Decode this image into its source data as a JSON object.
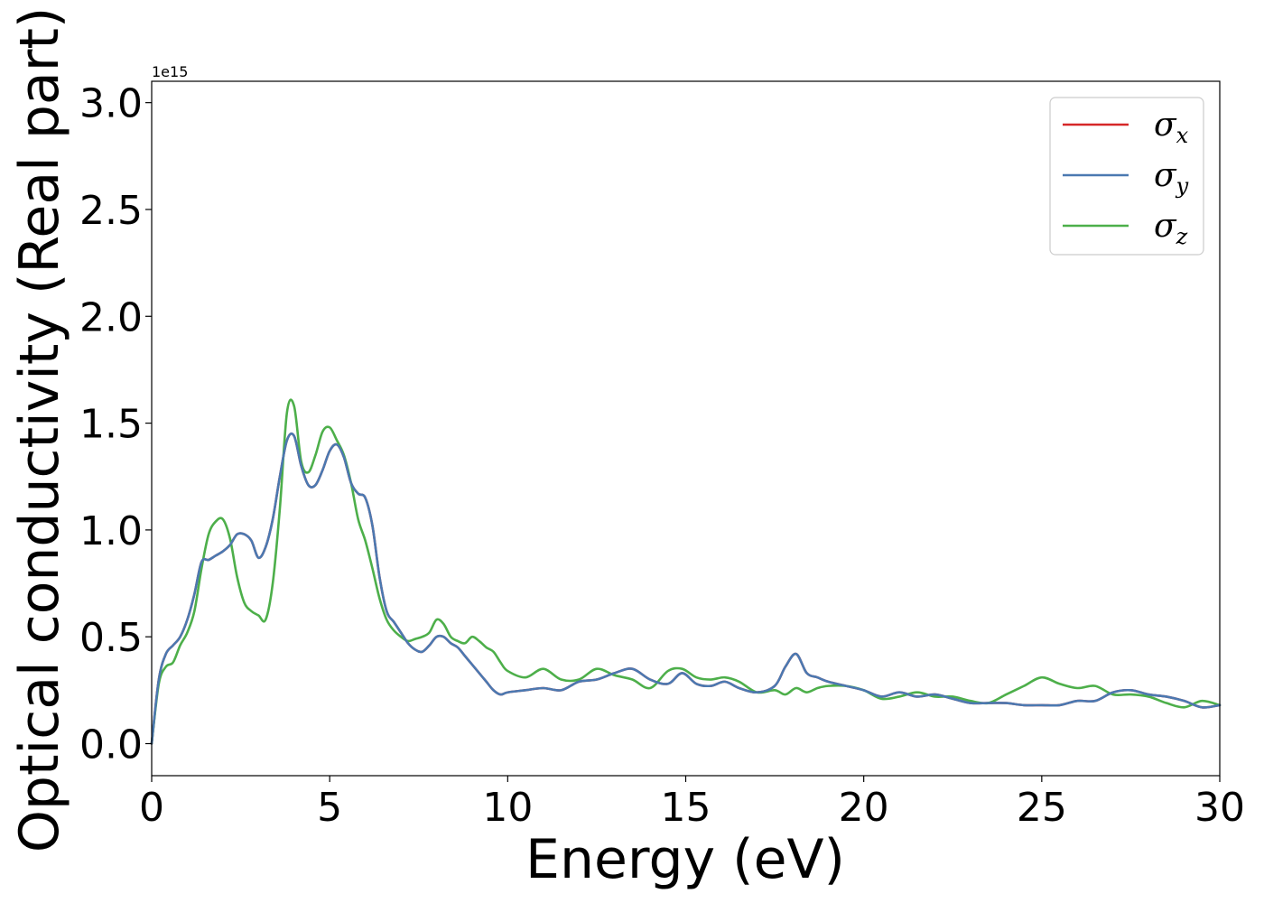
{
  "chart_data": {
    "type": "line",
    "xlabel": "Energy (eV)",
    "ylabel": "Optical conductivity (Real part)",
    "y_offset_label": "1e15",
    "xlim": [
      0,
      30
    ],
    "ylim": [
      -0.15,
      3.1
    ],
    "x_ticks": [
      0,
      5,
      10,
      15,
      20,
      25,
      30
    ],
    "x_tick_labels": [
      "0",
      "5",
      "10",
      "15",
      "20",
      "25",
      "30"
    ],
    "y_ticks": [
      0.0,
      0.5,
      1.0,
      1.5,
      2.0,
      2.5,
      3.0
    ],
    "y_tick_labels": [
      "0.0",
      "0.5",
      "1.0",
      "1.5",
      "2.0",
      "2.5",
      "3.0"
    ],
    "grid": false,
    "legend_position": "top-right",
    "series": [
      {
        "name": "σx",
        "symbol": "σ",
        "subscript": "x",
        "color": "#d62728",
        "x": [
          0,
          0.2,
          0.4,
          0.6,
          0.8,
          1.0,
          1.2,
          1.4,
          1.6,
          1.8,
          2.0,
          2.2,
          2.4,
          2.6,
          2.8,
          3.0,
          3.2,
          3.4,
          3.6,
          3.8,
          4.0,
          4.2,
          4.4,
          4.6,
          4.8,
          5.0,
          5.2,
          5.4,
          5.6,
          5.8,
          6.0,
          6.2,
          6.4,
          6.6,
          6.8,
          7.0,
          7.2,
          7.4,
          7.6,
          7.8,
          8.0,
          8.2,
          8.4,
          8.6,
          8.8,
          9.0,
          9.2,
          9.4,
          9.6,
          9.8,
          10.0,
          10.5,
          11.0,
          11.5,
          12.0,
          12.5,
          13.0,
          13.5,
          14.0,
          14.5,
          14.9,
          15.3,
          15.7,
          16.1,
          16.5,
          17.0,
          17.5,
          17.8,
          18.1,
          18.4,
          18.7,
          19.0,
          19.5,
          20.0,
          20.5,
          21.0,
          21.5,
          22.0,
          22.5,
          23.0,
          23.5,
          24.0,
          24.5,
          25.0,
          25.5,
          26.0,
          26.5,
          27.0,
          27.5,
          28.0,
          28.5,
          29.0,
          29.5,
          30.0
        ],
        "y": [
          0.0,
          0.3,
          0.42,
          0.46,
          0.5,
          0.58,
          0.7,
          0.85,
          0.86,
          0.88,
          0.9,
          0.93,
          0.98,
          0.98,
          0.95,
          0.87,
          0.92,
          1.05,
          1.25,
          1.42,
          1.44,
          1.3,
          1.21,
          1.21,
          1.28,
          1.37,
          1.4,
          1.34,
          1.22,
          1.17,
          1.15,
          1.02,
          0.78,
          0.62,
          0.57,
          0.52,
          0.47,
          0.44,
          0.43,
          0.46,
          0.5,
          0.5,
          0.47,
          0.45,
          0.41,
          0.37,
          0.33,
          0.29,
          0.25,
          0.23,
          0.24,
          0.25,
          0.26,
          0.25,
          0.29,
          0.3,
          0.33,
          0.35,
          0.3,
          0.28,
          0.33,
          0.28,
          0.27,
          0.29,
          0.26,
          0.24,
          0.27,
          0.36,
          0.42,
          0.33,
          0.31,
          0.29,
          0.27,
          0.25,
          0.22,
          0.24,
          0.22,
          0.23,
          0.21,
          0.19,
          0.19,
          0.19,
          0.18,
          0.18,
          0.18,
          0.2,
          0.2,
          0.24,
          0.25,
          0.23,
          0.22,
          0.2,
          0.17,
          0.18
        ]
      },
      {
        "name": "σy",
        "symbol": "σ",
        "subscript": "y",
        "color": "#4b79b1",
        "x": [
          0,
          0.2,
          0.4,
          0.6,
          0.8,
          1.0,
          1.2,
          1.4,
          1.6,
          1.8,
          2.0,
          2.2,
          2.4,
          2.6,
          2.8,
          3.0,
          3.2,
          3.4,
          3.6,
          3.8,
          4.0,
          4.2,
          4.4,
          4.6,
          4.8,
          5.0,
          5.2,
          5.4,
          5.6,
          5.8,
          6.0,
          6.2,
          6.4,
          6.6,
          6.8,
          7.0,
          7.2,
          7.4,
          7.6,
          7.8,
          8.0,
          8.2,
          8.4,
          8.6,
          8.8,
          9.0,
          9.2,
          9.4,
          9.6,
          9.8,
          10.0,
          10.5,
          11.0,
          11.5,
          12.0,
          12.5,
          13.0,
          13.5,
          14.0,
          14.5,
          14.9,
          15.3,
          15.7,
          16.1,
          16.5,
          17.0,
          17.5,
          17.8,
          18.1,
          18.4,
          18.7,
          19.0,
          19.5,
          20.0,
          20.5,
          21.0,
          21.5,
          22.0,
          22.5,
          23.0,
          23.5,
          24.0,
          24.5,
          25.0,
          25.5,
          26.0,
          26.5,
          27.0,
          27.5,
          28.0,
          28.5,
          29.0,
          29.5,
          30.0
        ],
        "y": [
          0.0,
          0.3,
          0.42,
          0.46,
          0.5,
          0.58,
          0.7,
          0.85,
          0.86,
          0.88,
          0.9,
          0.93,
          0.98,
          0.98,
          0.95,
          0.87,
          0.92,
          1.05,
          1.25,
          1.42,
          1.44,
          1.3,
          1.21,
          1.21,
          1.28,
          1.37,
          1.4,
          1.34,
          1.22,
          1.17,
          1.15,
          1.02,
          0.78,
          0.62,
          0.57,
          0.52,
          0.47,
          0.44,
          0.43,
          0.46,
          0.5,
          0.5,
          0.47,
          0.45,
          0.41,
          0.37,
          0.33,
          0.29,
          0.25,
          0.23,
          0.24,
          0.25,
          0.26,
          0.25,
          0.29,
          0.3,
          0.33,
          0.35,
          0.3,
          0.28,
          0.33,
          0.28,
          0.27,
          0.29,
          0.26,
          0.24,
          0.27,
          0.36,
          0.42,
          0.33,
          0.31,
          0.29,
          0.27,
          0.25,
          0.22,
          0.24,
          0.22,
          0.23,
          0.21,
          0.19,
          0.19,
          0.19,
          0.18,
          0.18,
          0.18,
          0.2,
          0.2,
          0.24,
          0.25,
          0.23,
          0.22,
          0.2,
          0.17,
          0.18
        ]
      },
      {
        "name": "σz",
        "symbol": "σ",
        "subscript": "z",
        "color": "#4daf4a",
        "x": [
          0,
          0.2,
          0.4,
          0.6,
          0.8,
          1.0,
          1.2,
          1.4,
          1.6,
          1.8,
          2.0,
          2.2,
          2.4,
          2.6,
          2.8,
          3.0,
          3.2,
          3.4,
          3.6,
          3.8,
          4.0,
          4.2,
          4.4,
          4.6,
          4.8,
          5.0,
          5.2,
          5.4,
          5.6,
          5.8,
          6.0,
          6.2,
          6.4,
          6.6,
          6.8,
          7.0,
          7.2,
          7.4,
          7.6,
          7.8,
          8.0,
          8.2,
          8.4,
          8.6,
          8.8,
          9.0,
          9.2,
          9.4,
          9.6,
          9.8,
          10.0,
          10.5,
          11.0,
          11.5,
          12.0,
          12.5,
          13.0,
          13.5,
          14.0,
          14.5,
          14.9,
          15.3,
          15.7,
          16.1,
          16.5,
          17.0,
          17.5,
          17.8,
          18.1,
          18.4,
          18.7,
          19.0,
          19.5,
          20.0,
          20.5,
          21.0,
          21.5,
          22.0,
          22.5,
          23.0,
          23.5,
          24.0,
          24.5,
          25.0,
          25.5,
          26.0,
          26.5,
          27.0,
          27.5,
          28.0,
          28.5,
          29.0,
          29.5,
          30.0
        ],
        "y": [
          0.0,
          0.28,
          0.36,
          0.38,
          0.46,
          0.52,
          0.62,
          0.82,
          0.98,
          1.04,
          1.05,
          0.96,
          0.78,
          0.66,
          0.62,
          0.6,
          0.58,
          0.75,
          1.1,
          1.55,
          1.58,
          1.32,
          1.27,
          1.35,
          1.46,
          1.48,
          1.42,
          1.35,
          1.22,
          1.05,
          0.95,
          0.82,
          0.68,
          0.58,
          0.53,
          0.5,
          0.48,
          0.49,
          0.5,
          0.52,
          0.58,
          0.56,
          0.5,
          0.48,
          0.47,
          0.5,
          0.48,
          0.45,
          0.43,
          0.38,
          0.34,
          0.31,
          0.35,
          0.3,
          0.3,
          0.35,
          0.32,
          0.3,
          0.26,
          0.34,
          0.35,
          0.31,
          0.3,
          0.31,
          0.29,
          0.24,
          0.25,
          0.23,
          0.26,
          0.24,
          0.26,
          0.27,
          0.27,
          0.25,
          0.21,
          0.22,
          0.24,
          0.22,
          0.22,
          0.2,
          0.19,
          0.23,
          0.27,
          0.31,
          0.28,
          0.26,
          0.27,
          0.23,
          0.23,
          0.22,
          0.19,
          0.17,
          0.2,
          0.18
        ]
      }
    ]
  }
}
